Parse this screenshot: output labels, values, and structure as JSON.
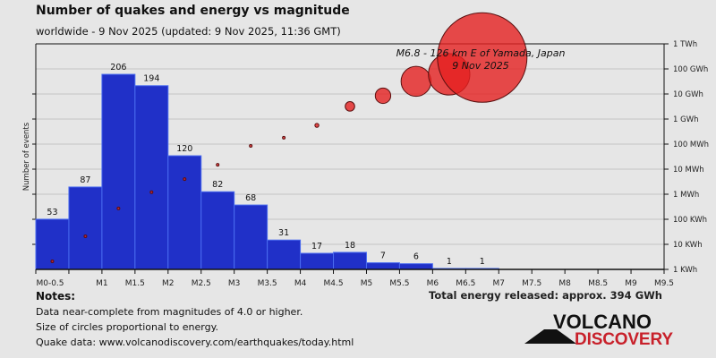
{
  "header": {
    "title": "Number of quakes and energy vs magnitude",
    "subtitle": "worldwide -  9 Nov 2025 (updated: 9 Nov 2025, 11:36 GMT)"
  },
  "chart_data": {
    "type": "bar",
    "title": "Number of quakes and energy vs magnitude",
    "ylabel": "Number of events",
    "x_tick_labels": [
      "M0-0.5",
      "M1",
      "M1.5",
      "M2",
      "M2.5",
      "M3",
      "M3.5",
      "M4",
      "M4.5",
      "M5",
      "M5.5",
      "M6",
      "M6.5",
      "M7",
      "M7.5",
      "M8",
      "M8.5",
      "M9",
      "M9.5"
    ],
    "xlim": [
      0,
      9.5
    ],
    "bins": [
      [
        0,
        0.5
      ],
      [
        0.5,
        1
      ],
      [
        1,
        1.5
      ],
      [
        1.5,
        2
      ],
      [
        2,
        2.5
      ],
      [
        2.5,
        3
      ],
      [
        3,
        3.5
      ],
      [
        3.5,
        4
      ],
      [
        4,
        4.5
      ],
      [
        4.5,
        5
      ],
      [
        5,
        5.5
      ],
      [
        5.5,
        6
      ],
      [
        6,
        6.5
      ],
      [
        6.5,
        7
      ]
    ],
    "counts": [
      53,
      87,
      206,
      194,
      120,
      82,
      68,
      31,
      17,
      18,
      7,
      6,
      1,
      1
    ],
    "energy_kwh": [
      2.1,
      21,
      270,
      1200,
      4000,
      15000,
      85000,
      180000,
      560000,
      3200000,
      8500000,
      32000000,
      61000000,
      285000000
    ],
    "energy_axis_labels": [
      "1 KWh",
      "10 KWh",
      "100 KWh",
      "1 MWh",
      "10 MWh",
      "100 MWh",
      "1 GWh",
      "10 GWh",
      "100 GWh",
      "1 TWh"
    ],
    "energy_axis_scale": "log",
    "grid": true,
    "annotation": {
      "line1": "M6.8 - 126 km E of Yamada, Japan",
      "line2": "9 Nov 2025"
    },
    "colors": {
      "bar": "#2030c8",
      "bar_edge": "#4a6cf0",
      "circle": "#e52020",
      "background": "#e6e6e6"
    }
  },
  "footer": {
    "notes_heading": "Notes:",
    "notes": [
      "Data near-complete from magnitudes of 4.0 or higher.",
      "Size of circles proportional to energy.",
      "Quake data: www.volcanodiscovery.com/earthquakes/today.html"
    ],
    "total_energy": "Total energy released: approx. 394 GWh",
    "logo_text": [
      "VOLCANO",
      "DISCOVERY"
    ]
  }
}
